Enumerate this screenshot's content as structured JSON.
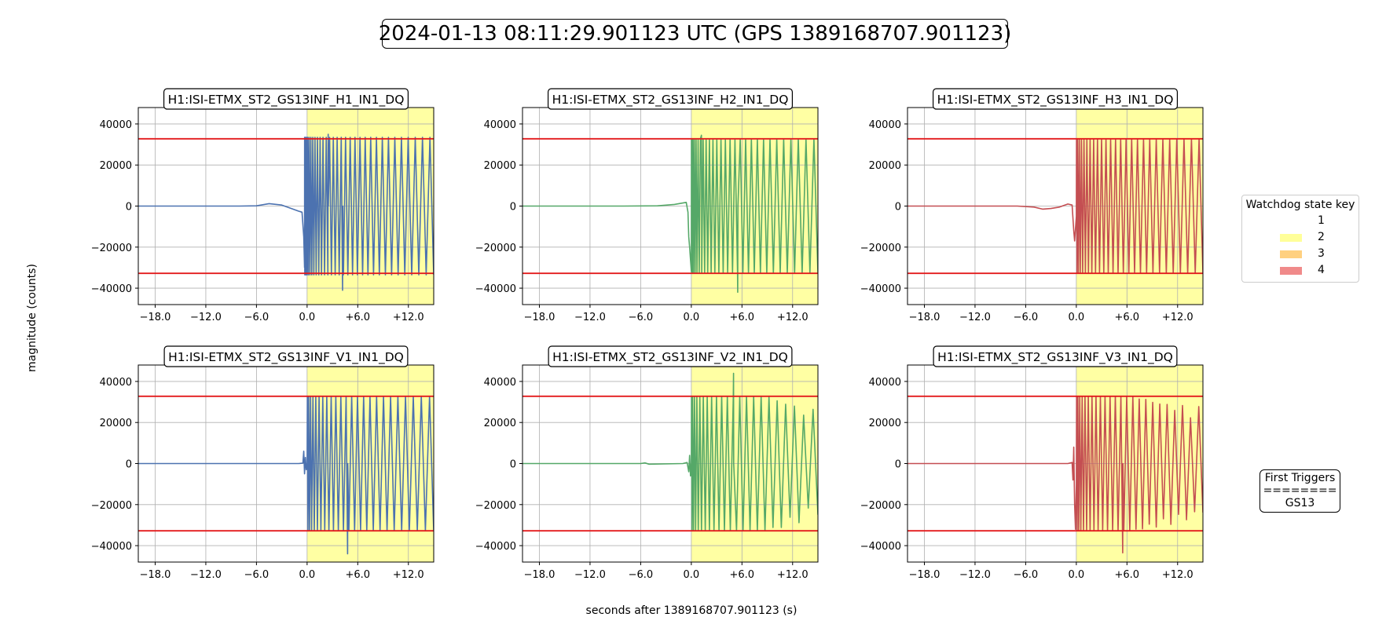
{
  "figure": {
    "title": "2024-01-13 08:11:29.901123 UTC (GPS 1389168707.901123)",
    "ylabel": "magnitude (counts)",
    "xlabel": "seconds after 1389168707.901123 (s)"
  },
  "legend": {
    "title": "Watchdog state key",
    "entries": [
      {
        "label": "1",
        "color": "#ffffff"
      },
      {
        "label": "2",
        "color": "#ffff99"
      },
      {
        "label": "3",
        "color": "#ffd080"
      },
      {
        "label": "4",
        "color": "#f08a8a"
      }
    ]
  },
  "first_triggers": {
    "title": "First Triggers",
    "separator": "========",
    "value": "GS13"
  },
  "chart_data": [
    {
      "type": "line",
      "title": "H1:ISI-ETMX_ST2_GS13INF_H1_IN1_DQ",
      "color": "#4c72b0",
      "xlim": [
        -20.0,
        15.0
      ],
      "ylim": [
        -48000,
        48000
      ],
      "xticks": [
        -18.0,
        -12.0,
        -6.0,
        0.0,
        6.0,
        12.0
      ],
      "xtick_labels": [
        "−18.0",
        "−12.0",
        "−6.0",
        "0.0",
        "+6.0",
        "+12.0"
      ],
      "yticks": [
        -40000,
        -20000,
        0,
        20000,
        40000
      ],
      "ytick_labels": [
        "−40000",
        "−20000",
        "0",
        "20000",
        "40000"
      ],
      "thresholds": [
        32768,
        -32768
      ],
      "state_region": {
        "state": 2,
        "x": [
          0.0,
          15.0
        ]
      },
      "pre": [
        [
          -20,
          0
        ],
        [
          -8,
          0
        ],
        [
          -6,
          100
        ],
        [
          -4.5,
          1200
        ],
        [
          -3,
          500
        ],
        [
          -2,
          -1000
        ],
        [
          -1,
          -2500
        ],
        [
          -0.6,
          -3000
        ],
        [
          -0.4,
          -15000
        ],
        [
          -0.3,
          -30000
        ]
      ],
      "osc": {
        "start": -0.3,
        "cycles": 32,
        "stretch": 1.9,
        "min": -33500,
        "max": 33500
      },
      "spikes": [
        [
          4.2,
          -41000
        ],
        [
          2.5,
          35000
        ]
      ]
    },
    {
      "type": "line",
      "title": "H1:ISI-ETMX_ST2_GS13INF_H2_IN1_DQ",
      "color": "#55a868",
      "xlim": [
        -20.0,
        15.0
      ],
      "ylim": [
        -48000,
        48000
      ],
      "xticks": [
        -18.0,
        -12.0,
        -6.0,
        0.0,
        6.0,
        12.0
      ],
      "xtick_labels": [
        "−18.0",
        "−12.0",
        "−6.0",
        "0.0",
        "+6.0",
        "+12.0"
      ],
      "yticks": [
        -40000,
        -20000,
        0,
        20000,
        40000
      ],
      "ytick_labels": [
        "−40000",
        "−20000",
        "0",
        "20000",
        "40000"
      ],
      "thresholds": [
        32768,
        -32768
      ],
      "state_region": {
        "state": 2,
        "x": [
          0.0,
          15.0
        ]
      },
      "pre": [
        [
          -20,
          0
        ],
        [
          -8,
          0
        ],
        [
          -4,
          100
        ],
        [
          -2,
          800
        ],
        [
          -1,
          1500
        ],
        [
          -0.6,
          1800
        ],
        [
          -0.4,
          -3000
        ],
        [
          -0.3,
          -15000
        ],
        [
          -0.2,
          -20000
        ],
        [
          0.0,
          -32000
        ]
      ],
      "osc": {
        "start": 0.0,
        "cycles": 28,
        "stretch": 1.8,
        "min": -32768,
        "max": 32768
      },
      "spikes": [
        [
          5.5,
          -42000
        ],
        [
          1.2,
          34500
        ]
      ]
    },
    {
      "type": "line",
      "title": "H1:ISI-ETMX_ST2_GS13INF_H3_IN1_DQ",
      "color": "#c44e52",
      "xlim": [
        -20.0,
        15.0
      ],
      "ylim": [
        -48000,
        48000
      ],
      "xticks": [
        -18.0,
        -12.0,
        -6.0,
        0.0,
        6.0,
        12.0
      ],
      "xtick_labels": [
        "−18.0",
        "−12.0",
        "−6.0",
        "0.0",
        "+6.0",
        "+12.0"
      ],
      "yticks": [
        -40000,
        -20000,
        0,
        20000,
        40000
      ],
      "ytick_labels": [
        "−40000",
        "−20000",
        "0",
        "20000",
        "40000"
      ],
      "thresholds": [
        32768,
        -32768
      ],
      "state_region": {
        "state": 2,
        "x": [
          0.0,
          15.0
        ]
      },
      "pre": [
        [
          -20,
          0
        ],
        [
          -7,
          0
        ],
        [
          -5,
          -500
        ],
        [
          -4,
          -1500
        ],
        [
          -3,
          -1200
        ],
        [
          -2,
          -500
        ],
        [
          -1,
          1000
        ],
        [
          -0.5,
          500
        ],
        [
          -0.3,
          -12000
        ],
        [
          -0.2,
          -17000
        ],
        [
          0.0,
          -5000
        ]
      ],
      "osc": {
        "start": 0.0,
        "cycles": 26,
        "stretch": 1.6,
        "min": -32768,
        "max": 32768
      },
      "spikes": []
    },
    {
      "type": "line",
      "title": "H1:ISI-ETMX_ST2_GS13INF_V1_IN1_DQ",
      "color": "#4c72b0",
      "xlim": [
        -20.0,
        15.0
      ],
      "ylim": [
        -48000,
        48000
      ],
      "xticks": [
        -18.0,
        -12.0,
        -6.0,
        0.0,
        6.0,
        12.0
      ],
      "xtick_labels": [
        "−18.0",
        "−12.0",
        "−6.0",
        "0.0",
        "+6.0",
        "+12.0"
      ],
      "yticks": [
        -40000,
        -20000,
        0,
        20000,
        40000
      ],
      "ytick_labels": [
        "−40000",
        "−20000",
        "0",
        "20000",
        "40000"
      ],
      "thresholds": [
        32768,
        -32768
      ],
      "state_region": {
        "state": 2,
        "x": [
          0.0,
          15.0
        ]
      },
      "pre": [
        [
          -20,
          0
        ],
        [
          -1,
          0
        ],
        [
          -0.5,
          200
        ],
        [
          -0.4,
          6000
        ],
        [
          -0.3,
          -5000
        ],
        [
          -0.2,
          3000
        ],
        [
          -0.1,
          -3000
        ],
        [
          0.0,
          0
        ]
      ],
      "osc": {
        "start": 0.0,
        "cycles": 24,
        "stretch": 1.6,
        "min": -32768,
        "max": 32768
      },
      "spikes": [
        [
          4.8,
          -44000
        ]
      ]
    },
    {
      "type": "line",
      "title": "H1:ISI-ETMX_ST2_GS13INF_V2_IN1_DQ",
      "color": "#55a868",
      "xlim": [
        -20.0,
        15.0
      ],
      "ylim": [
        -48000,
        48000
      ],
      "xticks": [
        -18.0,
        -12.0,
        -6.0,
        0.0,
        6.0,
        12.0
      ],
      "xtick_labels": [
        "−18.0",
        "−12.0",
        "−6.0",
        "0.0",
        "+6.0",
        "+12.0"
      ],
      "yticks": [
        -40000,
        -20000,
        0,
        20000,
        40000
      ],
      "ytick_labels": [
        "−40000",
        "−20000",
        "0",
        "20000",
        "40000"
      ],
      "thresholds": [
        32768,
        -32768
      ],
      "state_region": {
        "state": 2,
        "x": [
          0.0,
          15.0
        ]
      },
      "pre": [
        [
          -20,
          0
        ],
        [
          -6,
          0
        ],
        [
          -5.5,
          300
        ],
        [
          -5,
          -300
        ],
        [
          -1,
          0
        ],
        [
          -0.5,
          500
        ],
        [
          -0.3,
          -4000
        ],
        [
          -0.2,
          4000
        ],
        [
          -0.1,
          -6000
        ],
        [
          0.0,
          0
        ]
      ],
      "osc": {
        "start": 0.0,
        "cycles": 22,
        "stretch": 1.7,
        "min": -32768,
        "max": 32768,
        "decay_after": 9.0,
        "decay_to": 0.55
      },
      "spikes": [
        [
          5.0,
          44000
        ]
      ]
    },
    {
      "type": "line",
      "title": "H1:ISI-ETMX_ST2_GS13INF_V3_IN1_DQ",
      "color": "#c44e52",
      "xlim": [
        -20.0,
        15.0
      ],
      "ylim": [
        -48000,
        48000
      ],
      "xticks": [
        -18.0,
        -12.0,
        -6.0,
        0.0,
        6.0,
        12.0
      ],
      "xtick_labels": [
        "−18.0",
        "−12.0",
        "−6.0",
        "0.0",
        "+6.0",
        "+12.0"
      ],
      "yticks": [
        -40000,
        -20000,
        0,
        20000,
        40000
      ],
      "ytick_labels": [
        "−40000",
        "−20000",
        "0",
        "20000",
        "40000"
      ],
      "thresholds": [
        32768,
        -32768
      ],
      "state_region": {
        "state": 2,
        "x": [
          0.0,
          15.0
        ]
      },
      "pre": [
        [
          -20,
          0
        ],
        [
          -1,
          0
        ],
        [
          -0.5,
          500
        ],
        [
          -0.4,
          -8000
        ],
        [
          -0.3,
          8000
        ],
        [
          -0.2,
          -20000
        ],
        [
          -0.1,
          -32000
        ],
        [
          0.0,
          -10000
        ]
      ],
      "osc": {
        "start": 0.0,
        "cycles": 24,
        "stretch": 1.6,
        "min": -32768,
        "max": 32768,
        "decay_after": 6.5,
        "decay_to": 0.6
      },
      "spikes": [
        [
          5.5,
          -43500
        ]
      ]
    }
  ]
}
